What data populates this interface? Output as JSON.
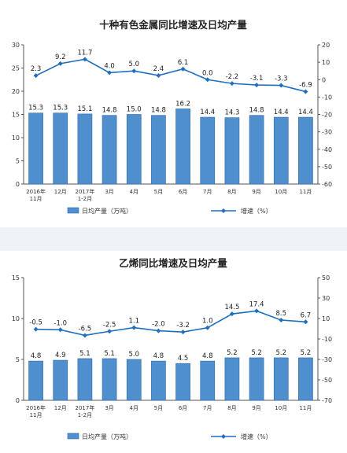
{
  "chart_data": [
    {
      "type": "bar+line",
      "title": "十种有色金属同比增速及日均产量",
      "categories": [
        [
          "2016年",
          "11月"
        ],
        [
          "12月"
        ],
        [
          "2017年",
          "1-2月"
        ],
        [
          "3月"
        ],
        [
          "4月"
        ],
        [
          "5月"
        ],
        [
          "6月"
        ],
        [
          "7月"
        ],
        [
          "8月"
        ],
        [
          "9月"
        ],
        [
          "10月"
        ],
        [
          "11月"
        ]
      ],
      "series": [
        {
          "name": "日均产量（万吨）",
          "type": "bar",
          "axis": "left",
          "values": [
            15.3,
            15.3,
            15.1,
            14.8,
            15.0,
            14.8,
            16.2,
            14.4,
            14.3,
            14.8,
            14.4,
            14.4
          ]
        },
        {
          "name": "增速（%）",
          "type": "line",
          "axis": "right",
          "values": [
            2.3,
            9.2,
            11.7,
            4.0,
            5.0,
            2.4,
            6.1,
            0.0,
            -2.2,
            -3.1,
            -3.3,
            -6.9
          ]
        }
      ],
      "left_ylim": [
        0,
        30
      ],
      "left_ticks": [
        0,
        5,
        10,
        15,
        20,
        25,
        30
      ],
      "right_ylim": [
        -60,
        20
      ],
      "right_ticks": [
        20,
        10,
        0,
        -10,
        -20,
        -30,
        -40,
        -50,
        -60
      ],
      "bar_labels": [
        "15.3",
        "15.3",
        "15.1",
        "14.8",
        "15.0",
        "14.8",
        "16.2",
        "14.4",
        "14.3",
        "14.8",
        "14.4",
        "14.4"
      ],
      "line_labels": [
        "2.3",
        "9.2",
        "11.7",
        "4.0",
        "5.0",
        "2.4",
        "6.1",
        "0.0",
        "-2.2",
        "-3.1",
        "-3.3",
        "-6.9"
      ],
      "legend_position": "bottom",
      "colors": {
        "bar_fill": "#4f8fce",
        "bar_stroke": "#2e6aa8",
        "line": "#1f6fbf"
      }
    },
    {
      "type": "bar+line",
      "title": "乙烯同比增速及日均产量",
      "categories": [
        [
          "2016年",
          "11月"
        ],
        [
          "12月"
        ],
        [
          "2017年",
          "1-2月"
        ],
        [
          "3月"
        ],
        [
          "4月"
        ],
        [
          "5月"
        ],
        [
          "6月"
        ],
        [
          "7月"
        ],
        [
          "8月"
        ],
        [
          "9月"
        ],
        [
          "10月"
        ],
        [
          "11月"
        ]
      ],
      "series": [
        {
          "name": "日均产量（万吨）",
          "type": "bar",
          "axis": "left",
          "values": [
            4.8,
            4.9,
            5.1,
            5.1,
            5.0,
            4.8,
            4.5,
            4.8,
            5.2,
            5.2,
            5.2,
            5.2
          ]
        },
        {
          "name": "增速（%）",
          "type": "line",
          "axis": "right",
          "values": [
            -0.5,
            -1.0,
            -6.5,
            -2.5,
            1.1,
            -2.0,
            -3.2,
            1.0,
            14.5,
            17.4,
            8.5,
            6.7
          ]
        }
      ],
      "left_ylim": [
        0,
        15
      ],
      "left_ticks": [
        0,
        5,
        10,
        15
      ],
      "right_ylim": [
        -70,
        50
      ],
      "right_ticks": [
        50,
        30,
        10,
        -10,
        -30,
        -50,
        -70
      ],
      "bar_labels": [
        "4.8",
        "4.9",
        "5.1",
        "5.1",
        "5.0",
        "4.8",
        "4.5",
        "4.8",
        "5.2",
        "5.2",
        "5.2",
        "5.2"
      ],
      "line_labels": [
        "-0.5",
        "-1.0",
        "-6.5",
        "-2.5",
        "1.1",
        "-2.0",
        "-3.2",
        "1.0",
        "14.5",
        "17.4",
        "8.5",
        "6.7"
      ],
      "legend_position": "bottom",
      "colors": {
        "bar_fill": "#4f8fce",
        "bar_stroke": "#2e6aa8",
        "line": "#1f6fbf"
      }
    }
  ]
}
